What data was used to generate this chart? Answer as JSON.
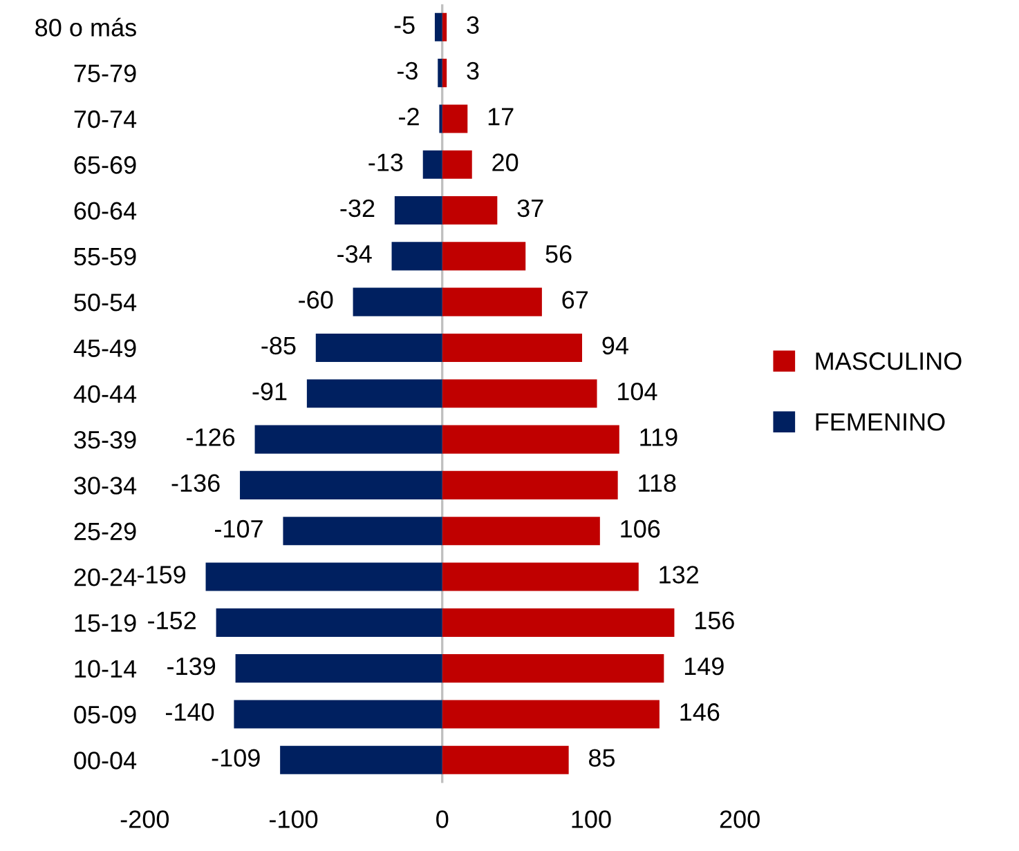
{
  "chart_data": {
    "type": "bar",
    "orientation": "horizontal",
    "categories": [
      "80 o más",
      "75-79",
      "70-74",
      "65-69",
      "60-64",
      "55-59",
      "50-54",
      "45-49",
      "40-44",
      "35-39",
      "30-34",
      "25-29",
      "20-24",
      "15-19",
      "10-14",
      "05-09",
      "00-04"
    ],
    "series": [
      {
        "name": "MASCULINO",
        "color": "#c00000",
        "values": [
          3,
          3,
          17,
          20,
          37,
          56,
          67,
          94,
          104,
          119,
          118,
          106,
          132,
          156,
          149,
          146,
          85
        ]
      },
      {
        "name": "FEMENINO",
        "color": "#002060",
        "values": [
          -5,
          -3,
          -2,
          -13,
          -32,
          -34,
          -60,
          -85,
          -91,
          -126,
          -136,
          -107,
          -159,
          -152,
          -139,
          -140,
          -109
        ]
      }
    ],
    "xlim": [
      -200,
      200
    ],
    "xticks": [
      -200,
      -100,
      0,
      100,
      200
    ],
    "stacked": true,
    "ref_lines": [
      {
        "axis": "x",
        "value": 0,
        "color": "#bfbfbf"
      }
    ],
    "data_labels": true,
    "legend": "right",
    "grid": false
  }
}
